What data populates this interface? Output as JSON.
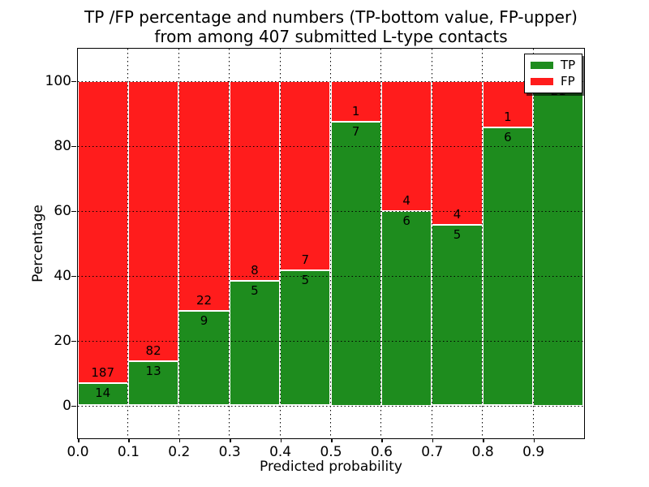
{
  "figure": {
    "title_line1": "TP /FP percentage and numbers (TP-bottom value, FP-upper)",
    "title_line2": "from among 407 submitted L-type contacts"
  },
  "chart_data": {
    "type": "bar",
    "stacked": true,
    "normalized_to_percent": true,
    "title": "TP /FP percentage and numbers (TP-bottom value, FP-upper) from among 407 submitted L-type contacts",
    "xlabel": "Predicted probability",
    "ylabel": "Percentage",
    "total_submitted": 407,
    "bin_width": 0.1,
    "categories": [
      "0.0-0.1",
      "0.1-0.2",
      "0.2-0.3",
      "0.3-0.4",
      "0.4-0.5",
      "0.5-0.6",
      "0.6-0.7",
      "0.7-0.8",
      "0.8-0.9",
      "0.9-1.0"
    ],
    "series": [
      {
        "name": "TP",
        "color": "#1e8c1e",
        "values": [
          14,
          13,
          9,
          5,
          5,
          7,
          6,
          5,
          6,
          21
        ]
      },
      {
        "name": "FP",
        "color": "#ff1c1c",
        "values": [
          187,
          82,
          22,
          8,
          7,
          1,
          4,
          4,
          1,
          0
        ]
      }
    ],
    "tp_percent": [
      6.97,
      13.68,
      29.03,
      38.46,
      41.67,
      87.5,
      60.0,
      55.56,
      85.71,
      100.0
    ],
    "fp_label_shown": [
      true,
      true,
      true,
      true,
      true,
      true,
      true,
      true,
      true,
      false
    ],
    "x_tick_labels": [
      "0.0",
      "0.1",
      "0.2",
      "0.3",
      "0.4",
      "0.5",
      "0.6",
      "0.7",
      "0.8",
      "0.9"
    ],
    "y_tick_values": [
      0,
      20,
      40,
      60,
      80,
      100
    ],
    "y_tick_labels": [
      "0",
      "20",
      "40",
      "60",
      "80",
      "100"
    ],
    "xlim": [
      0.0,
      1.0
    ],
    "ylim": [
      -10,
      110
    ],
    "grid": "dotted",
    "legend": {
      "position": "upper right",
      "items": [
        {
          "label": "TP",
          "color": "#1e8c1e"
        },
        {
          "label": "FP",
          "color": "#ff1c1c"
        }
      ]
    }
  },
  "colors": {
    "tp": "#1e8c1e",
    "fp": "#ff1c1c",
    "grid": "#000000",
    "frame": "#000000",
    "background": "#ffffff",
    "text": "#000000"
  }
}
